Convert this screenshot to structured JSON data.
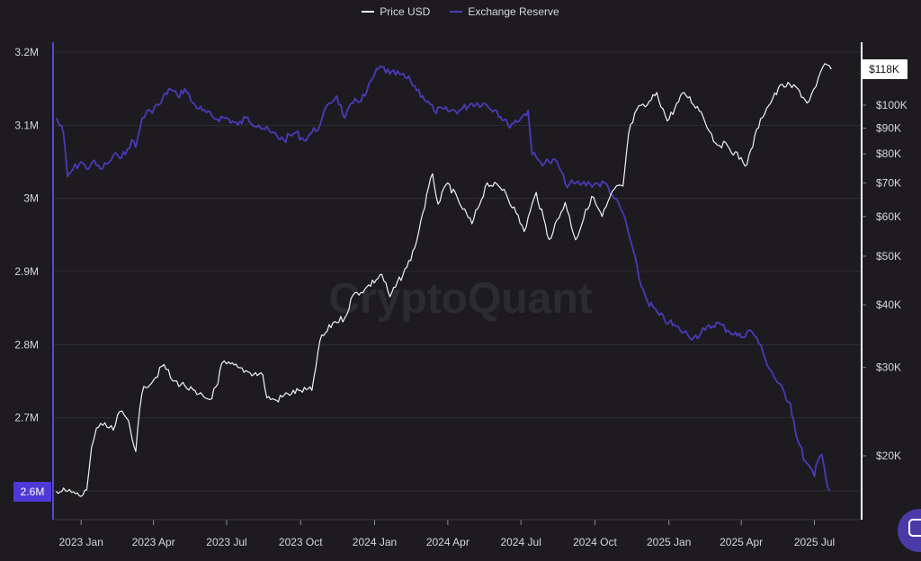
{
  "watermark": "CryptoQuant",
  "legend": {
    "price_label": "Price USD",
    "reserve_label": "Exchange Reserve"
  },
  "colors": {
    "background": "#1d1b20",
    "price": "#f2f2f2",
    "reserve": "#4b3ab9",
    "left_axis": "#5a43d8",
    "right_axis": "#ffffff"
  },
  "chart_data": {
    "type": "line",
    "title": "",
    "x_tick_labels": [
      "2023 Jan",
      "2023 Apr",
      "2023 Jul",
      "2023 Oct",
      "2024 Jan",
      "2024 Apr",
      "2024 Jul",
      "2024 Oct",
      "2025 Jan",
      "2025 Apr",
      "2025 Jul"
    ],
    "y_left": {
      "ylim": [
        2.58,
        3.22
      ],
      "scale": "linear",
      "ticks": [
        2.6,
        2.7,
        2.8,
        2.9,
        3.0,
        3.1,
        3.2
      ],
      "tick_labels": [
        "2.6M",
        "2.7M",
        "2.8M",
        "2.9M",
        "3M",
        "3.1M",
        "3.2M"
      ],
      "current_value_label": "2.6M"
    },
    "y_right": {
      "scale": "log",
      "ylim": [
        15500,
        130000
      ],
      "ticks": [
        20000,
        30000,
        40000,
        50000,
        60000,
        70000,
        80000,
        90000,
        100000
      ],
      "tick_labels": [
        "$20K",
        "$30K",
        "$40K",
        "$50K",
        "$60K",
        "$70K",
        "$80K",
        "$90K",
        "$100K"
      ],
      "current_value_label": "$118K"
    },
    "grid": true,
    "legend_position": "top-center",
    "series": [
      {
        "name": "Exchange Reserve",
        "axis": "left",
        "unit": "M BTC",
        "points": [
          [
            "2022-12-01",
            3.11
          ],
          [
            "2022-12-10",
            3.09
          ],
          [
            "2022-12-15",
            3.03
          ],
          [
            "2022-12-22",
            3.04
          ],
          [
            "2023-01-01",
            3.05
          ],
          [
            "2023-01-08",
            3.04
          ],
          [
            "2023-01-15",
            3.05
          ],
          [
            "2023-01-25",
            3.04
          ],
          [
            "2023-02-05",
            3.05
          ],
          [
            "2023-02-15",
            3.06
          ],
          [
            "2023-02-25",
            3.06
          ],
          [
            "2023-03-05",
            3.08
          ],
          [
            "2023-03-10",
            3.07
          ],
          [
            "2023-03-18",
            3.11
          ],
          [
            "2023-03-28",
            3.12
          ],
          [
            "2023-04-10",
            3.13
          ],
          [
            "2023-04-20",
            3.15
          ],
          [
            "2023-05-01",
            3.14
          ],
          [
            "2023-05-10",
            3.15
          ],
          [
            "2023-05-20",
            3.13
          ],
          [
            "2023-06-01",
            3.12
          ],
          [
            "2023-06-15",
            3.11
          ],
          [
            "2023-07-01",
            3.11
          ],
          [
            "2023-07-15",
            3.1
          ],
          [
            "2023-07-25",
            3.11
          ],
          [
            "2023-08-10",
            3.1
          ],
          [
            "2023-08-25",
            3.09
          ],
          [
            "2023-09-10",
            3.08
          ],
          [
            "2023-09-25",
            3.09
          ],
          [
            "2023-10-05",
            3.08
          ],
          [
            "2023-10-15",
            3.09
          ],
          [
            "2023-10-25",
            3.1
          ],
          [
            "2023-11-05",
            3.13
          ],
          [
            "2023-11-15",
            3.14
          ],
          [
            "2023-11-25",
            3.11
          ],
          [
            "2023-12-05",
            3.13
          ],
          [
            "2023-12-20",
            3.14
          ],
          [
            "2024-01-01",
            3.17
          ],
          [
            "2024-01-10",
            3.18
          ],
          [
            "2024-01-20",
            3.17
          ],
          [
            "2024-02-01",
            3.17
          ],
          [
            "2024-02-15",
            3.16
          ],
          [
            "2024-03-01",
            3.14
          ],
          [
            "2024-03-15",
            3.12
          ],
          [
            "2024-04-01",
            3.12
          ],
          [
            "2024-04-15",
            3.12
          ],
          [
            "2024-05-01",
            3.13
          ],
          [
            "2024-05-15",
            3.13
          ],
          [
            "2024-06-01",
            3.12
          ],
          [
            "2024-06-15",
            3.1
          ],
          [
            "2024-07-01",
            3.11
          ],
          [
            "2024-07-10",
            3.12
          ],
          [
            "2024-07-15",
            3.06
          ],
          [
            "2024-07-25",
            3.05
          ],
          [
            "2024-08-05",
            3.05
          ],
          [
            "2024-08-15",
            3.05
          ],
          [
            "2024-08-25",
            3.02
          ],
          [
            "2024-09-05",
            3.02
          ],
          [
            "2024-09-15",
            3.02
          ],
          [
            "2024-09-25",
            3.02
          ],
          [
            "2024-10-05",
            3.02
          ],
          [
            "2024-10-15",
            3.02
          ],
          [
            "2024-10-25",
            3.0
          ],
          [
            "2024-11-05",
            2.98
          ],
          [
            "2024-11-15",
            2.94
          ],
          [
            "2024-11-25",
            2.89
          ],
          [
            "2024-12-05",
            2.86
          ],
          [
            "2024-12-20",
            2.84
          ],
          [
            "2025-01-01",
            2.83
          ],
          [
            "2025-01-15",
            2.82
          ],
          [
            "2025-02-01",
            2.81
          ],
          [
            "2025-02-15",
            2.82
          ],
          [
            "2025-03-01",
            2.83
          ],
          [
            "2025-03-15",
            2.82
          ],
          [
            "2025-04-01",
            2.81
          ],
          [
            "2025-04-10",
            2.82
          ],
          [
            "2025-04-20",
            2.81
          ],
          [
            "2025-05-01",
            2.78
          ],
          [
            "2025-05-15",
            2.75
          ],
          [
            "2025-06-01",
            2.72
          ],
          [
            "2025-06-10",
            2.67
          ],
          [
            "2025-06-20",
            2.64
          ],
          [
            "2025-07-01",
            2.62
          ],
          [
            "2025-07-05",
            2.64
          ],
          [
            "2025-07-10",
            2.65
          ],
          [
            "2025-07-15",
            2.62
          ],
          [
            "2025-07-20",
            2.6
          ]
        ]
      },
      {
        "name": "Price USD",
        "axis": "right",
        "unit": "USD",
        "points": [
          [
            "2022-12-01",
            17000
          ],
          [
            "2022-12-15",
            17000
          ],
          [
            "2022-12-25",
            16800
          ],
          [
            "2023-01-01",
            16600
          ],
          [
            "2023-01-08",
            17100
          ],
          [
            "2023-01-14",
            20800
          ],
          [
            "2023-01-20",
            22700
          ],
          [
            "2023-01-28",
            23000
          ],
          [
            "2023-02-10",
            22500
          ],
          [
            "2023-02-18",
            24500
          ],
          [
            "2023-03-01",
            23500
          ],
          [
            "2023-03-10",
            20400
          ],
          [
            "2023-03-15",
            24800
          ],
          [
            "2023-03-20",
            27500
          ],
          [
            "2023-04-01",
            28300
          ],
          [
            "2023-04-14",
            30400
          ],
          [
            "2023-04-25",
            28200
          ],
          [
            "2023-05-10",
            27600
          ],
          [
            "2023-05-25",
            26500
          ],
          [
            "2023-06-10",
            25900
          ],
          [
            "2023-06-20",
            27800
          ],
          [
            "2023-06-25",
            30600
          ],
          [
            "2023-07-01",
            30500
          ],
          [
            "2023-07-15",
            30000
          ],
          [
            "2023-07-30",
            29300
          ],
          [
            "2023-08-15",
            29000
          ],
          [
            "2023-08-20",
            26100
          ],
          [
            "2023-09-01",
            25800
          ],
          [
            "2023-09-15",
            26600
          ],
          [
            "2023-10-01",
            27000
          ],
          [
            "2023-10-15",
            27000
          ],
          [
            "2023-10-25",
            33900
          ],
          [
            "2023-11-10",
            36800
          ],
          [
            "2023-11-25",
            37700
          ],
          [
            "2023-12-05",
            41800
          ],
          [
            "2023-12-20",
            43000
          ],
          [
            "2024-01-10",
            46000
          ],
          [
            "2024-01-20",
            41500
          ],
          [
            "2024-02-10",
            47500
          ],
          [
            "2024-02-20",
            52000
          ],
          [
            "2024-03-01",
            61000
          ],
          [
            "2024-03-13",
            73000
          ],
          [
            "2024-03-20",
            63500
          ],
          [
            "2024-04-01",
            70000
          ],
          [
            "2024-04-15",
            64000
          ],
          [
            "2024-05-01",
            58000
          ],
          [
            "2024-05-20",
            70000
          ],
          [
            "2024-06-10",
            68000
          ],
          [
            "2024-06-25",
            61000
          ],
          [
            "2024-07-05",
            56000
          ],
          [
            "2024-07-20",
            67000
          ],
          [
            "2024-08-05",
            54000
          ],
          [
            "2024-08-25",
            64000
          ],
          [
            "2024-09-07",
            53900
          ],
          [
            "2024-09-27",
            65800
          ],
          [
            "2024-10-10",
            60000
          ],
          [
            "2024-10-25",
            68000
          ],
          [
            "2024-11-05",
            69000
          ],
          [
            "2024-11-12",
            88000
          ],
          [
            "2024-11-22",
            98000
          ],
          [
            "2024-12-05",
            100000
          ],
          [
            "2024-12-17",
            106000
          ],
          [
            "2024-12-30",
            93000
          ],
          [
            "2025-01-20",
            106000
          ],
          [
            "2025-02-10",
            97000
          ],
          [
            "2025-02-28",
            84000
          ],
          [
            "2025-03-15",
            83000
          ],
          [
            "2025-04-08",
            76000
          ],
          [
            "2025-04-25",
            94000
          ],
          [
            "2025-05-10",
            103000
          ],
          [
            "2025-05-22",
            110000
          ],
          [
            "2025-06-10",
            108000
          ],
          [
            "2025-06-22",
            101000
          ],
          [
            "2025-07-03",
            109000
          ],
          [
            "2025-07-14",
            121000
          ],
          [
            "2025-07-22",
            118000
          ]
        ]
      }
    ]
  }
}
